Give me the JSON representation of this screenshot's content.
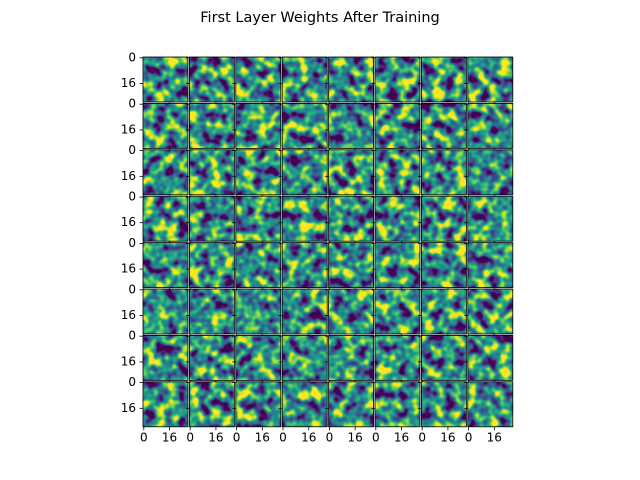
{
  "chart_data": {
    "type": "image-grid",
    "title": "First Layer Weights After Training",
    "xlim": [
      -0.5,
      27.5
    ],
    "ylim": [
      27.5,
      -0.5
    ],
    "xticks": [
      0,
      16
    ],
    "yticks": [
      0,
      16
    ],
    "colormap": "viridis"
  }
}
